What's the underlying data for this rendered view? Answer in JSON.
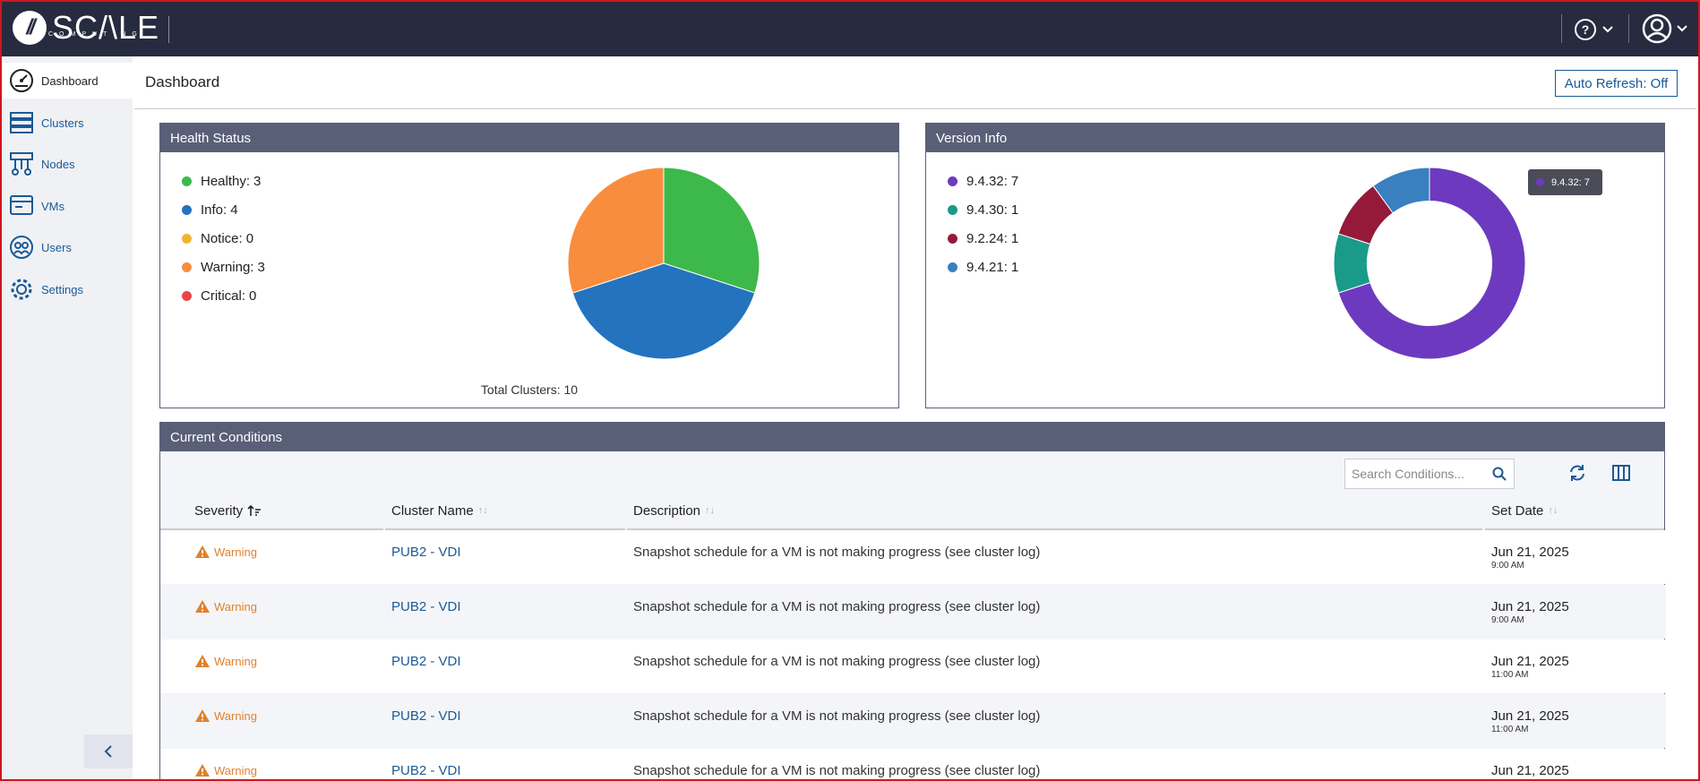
{
  "brand": {
    "name": "SC/\\LE",
    "sub": "COMPUTING"
  },
  "sidebar": {
    "items": [
      {
        "label": "Dashboard",
        "icon": "dashboard-icon",
        "active": true
      },
      {
        "label": "Clusters",
        "icon": "clusters-icon"
      },
      {
        "label": "Nodes",
        "icon": "nodes-icon"
      },
      {
        "label": "VMs",
        "icon": "vms-icon"
      },
      {
        "label": "Users",
        "icon": "users-icon"
      },
      {
        "label": "Settings",
        "icon": "settings-icon"
      }
    ]
  },
  "header": {
    "title": "Dashboard",
    "auto_refresh": "Auto Refresh: Off"
  },
  "health": {
    "title": "Health Status",
    "legend": [
      {
        "label": "Healthy:",
        "value": "3",
        "color": "#3db84a"
      },
      {
        "label": "Info:",
        "value": "4",
        "color": "#2473be"
      },
      {
        "label": "Notice:",
        "value": "0",
        "color": "#f2b233"
      },
      {
        "label": "Warning:",
        "value": "3",
        "color": "#f88d3e"
      },
      {
        "label": "Critical:",
        "value": "0",
        "color": "#e84646"
      }
    ],
    "total_label": "Total Clusters:",
    "total_value": "10"
  },
  "version": {
    "title": "Version Info",
    "legend": [
      {
        "label": "9.4.32:",
        "value": "7",
        "color": "#6d3abf"
      },
      {
        "label": "9.4.30:",
        "value": "1",
        "color": "#1a9a88"
      },
      {
        "label": "9.2.24:",
        "value": "1",
        "color": "#951a3a"
      },
      {
        "label": "9.4.21:",
        "value": "1",
        "color": "#3a7fc0"
      }
    ],
    "tooltip": {
      "label": "9.4.32:",
      "value": "7"
    }
  },
  "chart_data": [
    {
      "type": "pie",
      "categories": [
        "Healthy",
        "Info",
        "Notice",
        "Warning",
        "Critical"
      ],
      "values": [
        3,
        4,
        0,
        3,
        0
      ],
      "colors": [
        "#3db84a",
        "#2473be",
        "#f2b233",
        "#f88d3e",
        "#e84646"
      ]
    },
    {
      "type": "pie",
      "donut": true,
      "categories": [
        "9.4.32",
        "9.4.30",
        "9.2.24",
        "9.4.21"
      ],
      "values": [
        7,
        1,
        1,
        1
      ],
      "colors": [
        "#6d3abf",
        "#1a9a88",
        "#951a3a",
        "#3a7fc0"
      ]
    }
  ],
  "conditions": {
    "title": "Current Conditions",
    "search_placeholder": "Search Conditions...",
    "columns": [
      "Severity",
      "Cluster Name",
      "Description",
      "Set Date"
    ],
    "rows": [
      {
        "severity": "Warning",
        "cluster": "PUB2 - VDI",
        "description": "Snapshot schedule for a VM is not making progress (see cluster log)",
        "date": "Jun 21, 2025",
        "time": "9:00 AM"
      },
      {
        "severity": "Warning",
        "cluster": "PUB2 - VDI",
        "description": "Snapshot schedule for a VM is not making progress (see cluster log)",
        "date": "Jun 21, 2025",
        "time": "9:00 AM"
      },
      {
        "severity": "Warning",
        "cluster": "PUB2 - VDI",
        "description": "Snapshot schedule for a VM is not making progress (see cluster log)",
        "date": "Jun 21, 2025",
        "time": "11:00 AM"
      },
      {
        "severity": "Warning",
        "cluster": "PUB2 - VDI",
        "description": "Snapshot schedule for a VM is not making progress (see cluster log)",
        "date": "Jun 21, 2025",
        "time": "11:00 AM"
      },
      {
        "severity": "Warning",
        "cluster": "PUB2 - VDI",
        "description": "Snapshot schedule for a VM is not making progress (see cluster log)",
        "date": "Jun 21, 2025",
        "time": ""
      }
    ]
  }
}
